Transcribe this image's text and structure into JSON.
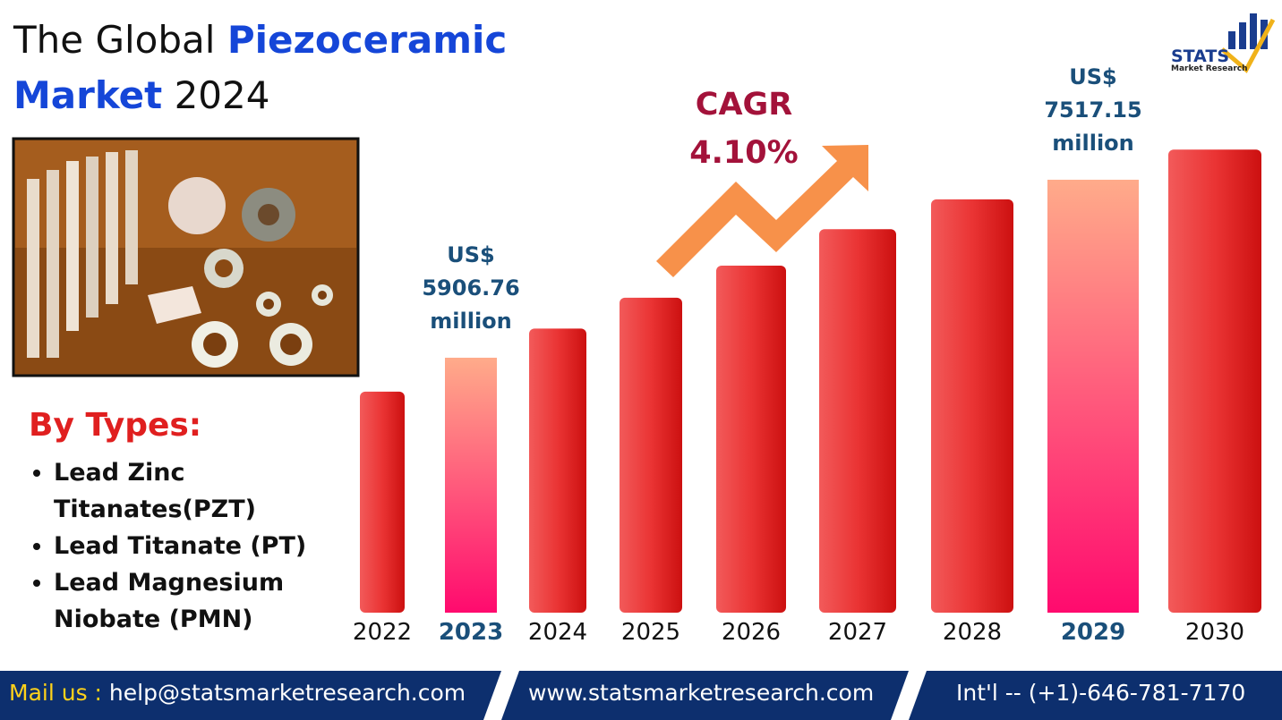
{
  "header": {
    "title_parts": [
      "The Global",
      "Piezoceramic",
      "Market",
      "2024"
    ]
  },
  "logo": {
    "name": "STATS",
    "tagline": "Market Research"
  },
  "types": {
    "heading": "By Types:",
    "items": [
      "Lead Zinc Titanates(PZT)",
      "Lead Titanate (PT)",
      "Lead Magnesium Niobate (PMN)"
    ]
  },
  "cagr": {
    "label": "CAGR",
    "value": "4.10%"
  },
  "footer": {
    "mail_label": "Mail us :",
    "email": "help@statsmarketresearch.com",
    "website": "www.statsmarketresearch.com",
    "phone": "Int'l -- (+1)-646-781-7170"
  },
  "chart_data": {
    "type": "bar",
    "categories": [
      "2022",
      "2023",
      "2024",
      "2025",
      "2026",
      "2027",
      "2028",
      "2029",
      "2030"
    ],
    "values": [
      5600,
      5906.76,
      6170,
      6450,
      6740,
      7070,
      7340,
      7517.15,
      7790
    ],
    "value_labels": [
      null,
      "US$ 5906.76 million",
      null,
      null,
      null,
      null,
      null,
      "US$ 7517.15 million",
      null
    ],
    "highlighted": [
      1,
      7
    ],
    "color": "#e42426",
    "highlight_color": "#ff1a6e",
    "ylim": [
      3600,
      7800
    ]
  }
}
